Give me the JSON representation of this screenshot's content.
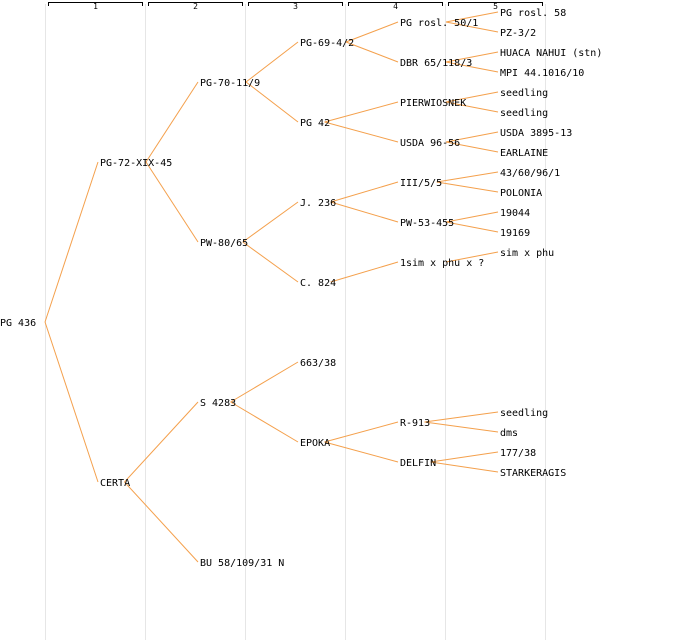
{
  "diagram": {
    "type": "pedigree-tree",
    "generations": [
      "1",
      "2",
      "3",
      "4",
      "5"
    ],
    "colors": {
      "edge": "#f4a04c",
      "grid": "#e6e6e6",
      "text": "#000000"
    },
    "tree": {
      "id": "n0",
      "label": "PG 436",
      "children": [
        {
          "id": "n1",
          "label": "PG-72-XIX-45",
          "children": [
            {
              "id": "n2",
              "label": "PG-70-11/9",
              "children": [
                {
                  "id": "n3",
                  "label": "PG-69-4/2",
                  "children": [
                    {
                      "id": "n4",
                      "label": "PG rosl. 50/1",
                      "children": [
                        {
                          "id": "n5",
                          "label": "PG rosl. 58"
                        },
                        {
                          "id": "n6",
                          "label": "PZ-3/2"
                        }
                      ]
                    },
                    {
                      "id": "n7",
                      "label": "DBR 65/118/3",
                      "children": [
                        {
                          "id": "n8",
                          "label": "HUACA NAHUI (stn)"
                        },
                        {
                          "id": "n9",
                          "label": "MPI 44.1016/10"
                        }
                      ]
                    }
                  ]
                },
                {
                  "id": "n10",
                  "label": "PG 42",
                  "children": [
                    {
                      "id": "n11",
                      "label": "PIERWIOSNEK",
                      "children": [
                        {
                          "id": "n12",
                          "label": "seedling"
                        },
                        {
                          "id": "n13",
                          "label": "seedling"
                        }
                      ]
                    },
                    {
                      "id": "n14",
                      "label": "USDA 96-56",
                      "children": [
                        {
                          "id": "n15",
                          "label": "USDA 3895-13"
                        },
                        {
                          "id": "n16",
                          "label": "EARLAINE"
                        }
                      ]
                    }
                  ]
                }
              ]
            },
            {
              "id": "n17",
              "label": "PW-80/65",
              "children": [
                {
                  "id": "n18",
                  "label": "J. 236",
                  "children": [
                    {
                      "id": "n19",
                      "label": "III/5/5",
                      "children": [
                        {
                          "id": "n20",
                          "label": "43/60/96/1"
                        },
                        {
                          "id": "n21",
                          "label": "POLONIA"
                        }
                      ]
                    },
                    {
                      "id": "n22",
                      "label": "PW-53-455",
                      "children": [
                        {
                          "id": "n23",
                          "label": "19044"
                        },
                        {
                          "id": "n24",
                          "label": "19169"
                        }
                      ]
                    }
                  ]
                },
                {
                  "id": "n25",
                  "label": "C. 824",
                  "children": [
                    {
                      "id": "n26",
                      "label": "1sim x phu x ?",
                      "children": [
                        {
                          "id": "n27",
                          "label": "sim x phu"
                        }
                      ]
                    }
                  ]
                }
              ]
            }
          ]
        },
        {
          "id": "n28",
          "label": "CERTA",
          "children": [
            {
              "id": "n29",
              "label": "S 4283",
              "children": [
                {
                  "id": "n30",
                  "label": "663/38"
                },
                {
                  "id": "n31",
                  "label": "EPOKA",
                  "children": [
                    {
                      "id": "n32",
                      "label": "R-913",
                      "children": [
                        {
                          "id": "n33",
                          "label": "seedling"
                        },
                        {
                          "id": "n34",
                          "label": "dms"
                        }
                      ]
                    },
                    {
                      "id": "n35",
                      "label": "DELFIN",
                      "children": [
                        {
                          "id": "n36",
                          "label": "177/38"
                        },
                        {
                          "id": "n37",
                          "label": "STARKERAGIS"
                        }
                      ]
                    }
                  ]
                }
              ]
            },
            {
              "id": "n38",
              "label": "BU 58/109/31 N"
            }
          ]
        }
      ]
    }
  }
}
